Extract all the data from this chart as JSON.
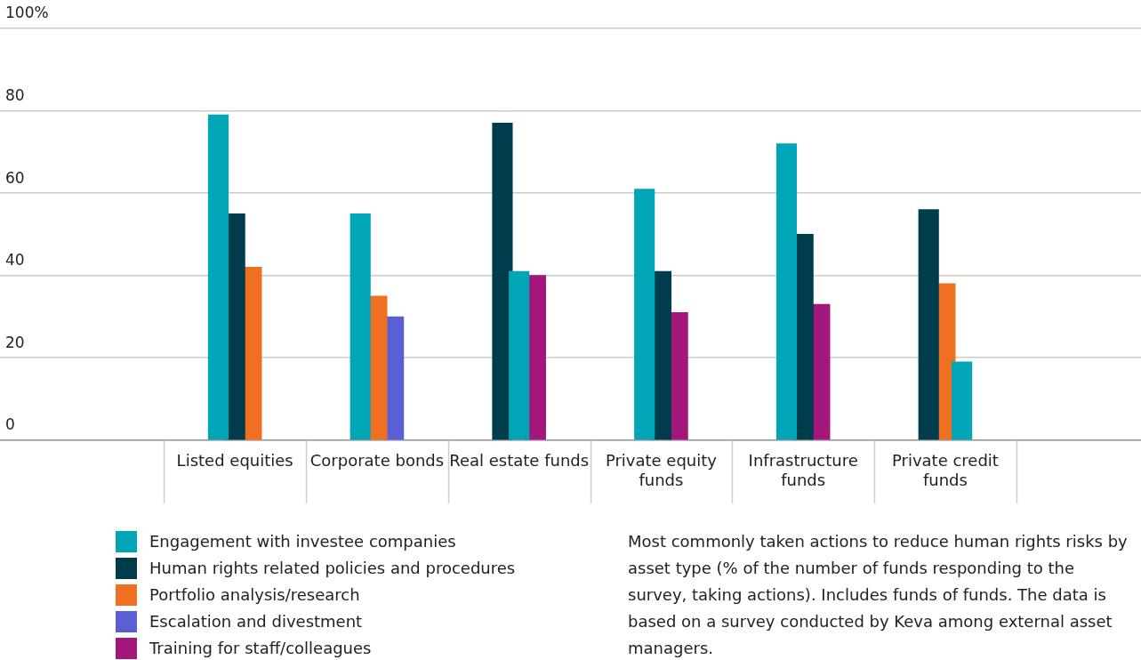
{
  "chart_data": {
    "type": "bar",
    "categories": [
      "Listed equities",
      "Corporate bonds",
      "Real estate funds",
      "Private equity funds",
      "Infrastructure funds",
      "Private credit funds"
    ],
    "series": [
      {
        "name": "Engagement with investee companies",
        "color": "#00a6b8",
        "values": [
          79,
          55,
          41,
          61,
          72,
          19
        ]
      },
      {
        "name": "Human rights related policies and procedures",
        "color": "#003d4c",
        "values": [
          55,
          null,
          77,
          41,
          50,
          56
        ]
      },
      {
        "name": "Portfolio analysis/research",
        "color": "#f07022",
        "values": [
          42,
          35,
          null,
          null,
          null,
          38
        ]
      },
      {
        "name": "Escalation and divestment",
        "color": "#5a5fd6",
        "values": [
          null,
          30,
          null,
          null,
          null,
          null
        ]
      },
      {
        "name": "Training for staff/colleagues",
        "color": "#a3177a",
        "values": [
          null,
          null,
          40,
          31,
          33,
          null
        ]
      }
    ],
    "ylim": [
      0,
      100
    ],
    "yticks": [
      0,
      20,
      40,
      60,
      80,
      {
        "value": 100,
        "label": "100%"
      }
    ],
    "grid": "y",
    "legend": "bottom",
    "annotations": [
      "Most commonly taken actions to reduce human rights risks by asset type (% of the number of funds responding to the survey, taking actions). Includes funds of funds. The data is based on a survey conducted by Keva among external asset managers."
    ]
  }
}
